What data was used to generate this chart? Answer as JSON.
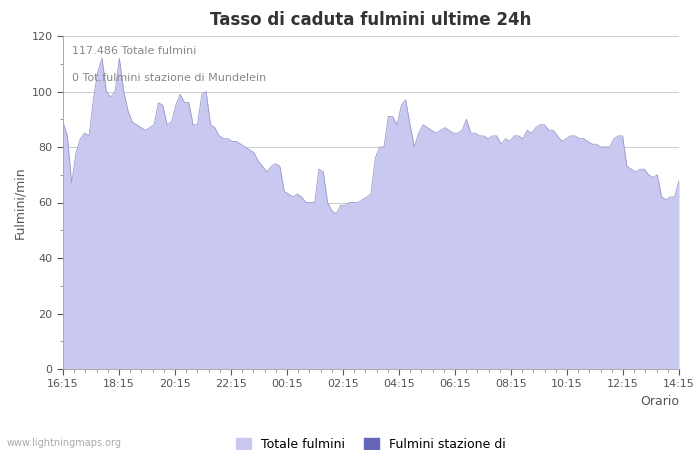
{
  "title": "Tasso di caduta fulmini ultime 24h",
  "xlabel": "Orario",
  "ylabel": "Fulmini/min",
  "legend_label1": "Totale fulmini",
  "legend_label2": "Fulmini stazione di",
  "annotation_line1": "117.486 Totale fulmini",
  "annotation_line2": "0 Tot.fulmini stazione di Mundelein",
  "watermark": "www.lightningmaps.org",
  "x_ticks": [
    "16:15",
    "18:15",
    "20:15",
    "22:15",
    "00:15",
    "02:15",
    "04:15",
    "06:15",
    "08:15",
    "10:15",
    "12:15",
    "14:15"
  ],
  "ylim": [
    0,
    120
  ],
  "yticks": [
    0,
    20,
    40,
    60,
    80,
    100,
    120
  ],
  "minor_yticks": [
    10,
    30,
    50,
    70,
    90,
    110
  ],
  "fill_color": "#c8c8f0",
  "fill_color2": "#6666bb",
  "background_color": "#ffffff",
  "grid_color": "#cccccc",
  "title_fontsize": 12,
  "tick_fontsize": 8,
  "label_fontsize": 9,
  "annotation_fontsize": 8,
  "y": [
    89,
    84,
    67,
    78,
    83,
    85,
    84,
    97,
    107,
    112,
    100,
    98,
    100,
    112,
    100,
    93,
    89,
    88,
    87,
    86,
    87,
    88,
    96,
    95,
    88,
    89,
    95,
    99,
    96,
    96,
    88,
    88,
    99,
    100,
    88,
    87,
    84,
    83,
    83,
    82,
    82,
    81,
    80,
    79,
    78,
    75,
    73,
    71,
    73,
    74,
    73,
    64,
    63,
    62,
    63,
    62,
    60,
    60,
    60,
    72,
    71,
    60,
    57,
    56,
    59,
    59,
    60,
    60,
    60,
    61,
    62,
    63,
    76,
    80,
    80,
    91,
    91,
    88,
    95,
    97,
    88,
    80,
    85,
    88,
    87,
    86,
    85,
    86,
    87,
    86,
    85,
    85,
    86,
    90,
    85,
    85,
    84,
    84,
    83,
    84,
    84,
    81,
    83,
    82,
    84,
    84,
    83,
    86,
    85,
    87,
    88,
    88,
    86,
    86,
    84,
    82,
    83,
    84,
    84,
    83,
    83,
    82,
    81,
    81,
    80,
    80,
    80,
    83,
    84,
    84,
    73,
    72,
    71,
    72,
    72,
    70,
    69,
    70,
    62,
    61,
    62,
    62,
    68
  ]
}
